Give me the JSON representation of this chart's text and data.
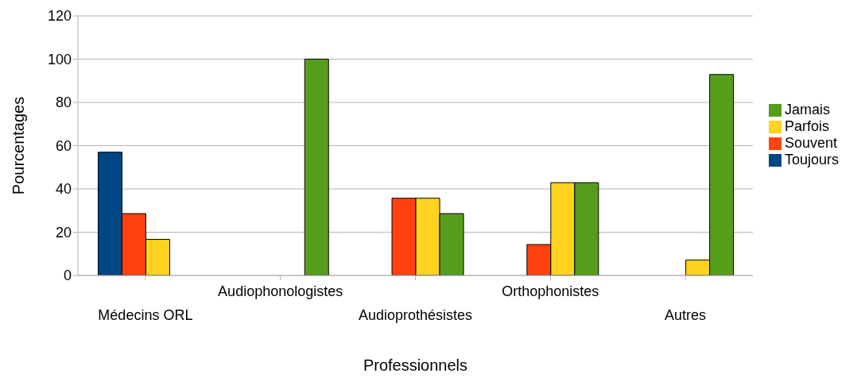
{
  "chart_data": {
    "type": "bar",
    "xlabel": "Professionnels",
    "ylabel": "Pourcentages",
    "categories": [
      "Médecins ORL",
      "Audiophonologistes",
      "Audioprothésistes",
      "Orthophonistes",
      "Autres"
    ],
    "series": [
      {
        "name": "Toujours",
        "color": "#004586",
        "values": [
          57,
          0,
          0,
          0,
          0
        ]
      },
      {
        "name": "Souvent",
        "color": "#ff420e",
        "values": [
          28.6,
          0,
          35.7,
          14.3,
          0
        ]
      },
      {
        "name": "Parfois",
        "color": "#ffd320",
        "values": [
          16.7,
          0,
          35.7,
          42.9,
          7.1
        ]
      },
      {
        "name": "Jamais",
        "color": "#579d1c",
        "values": [
          0,
          100,
          28.6,
          42.9,
          92.9
        ]
      }
    ],
    "ylim": [
      0,
      120
    ],
    "yticks": [
      0,
      20,
      40,
      60,
      80,
      100,
      120
    ],
    "grid": "y",
    "legend": "right"
  }
}
